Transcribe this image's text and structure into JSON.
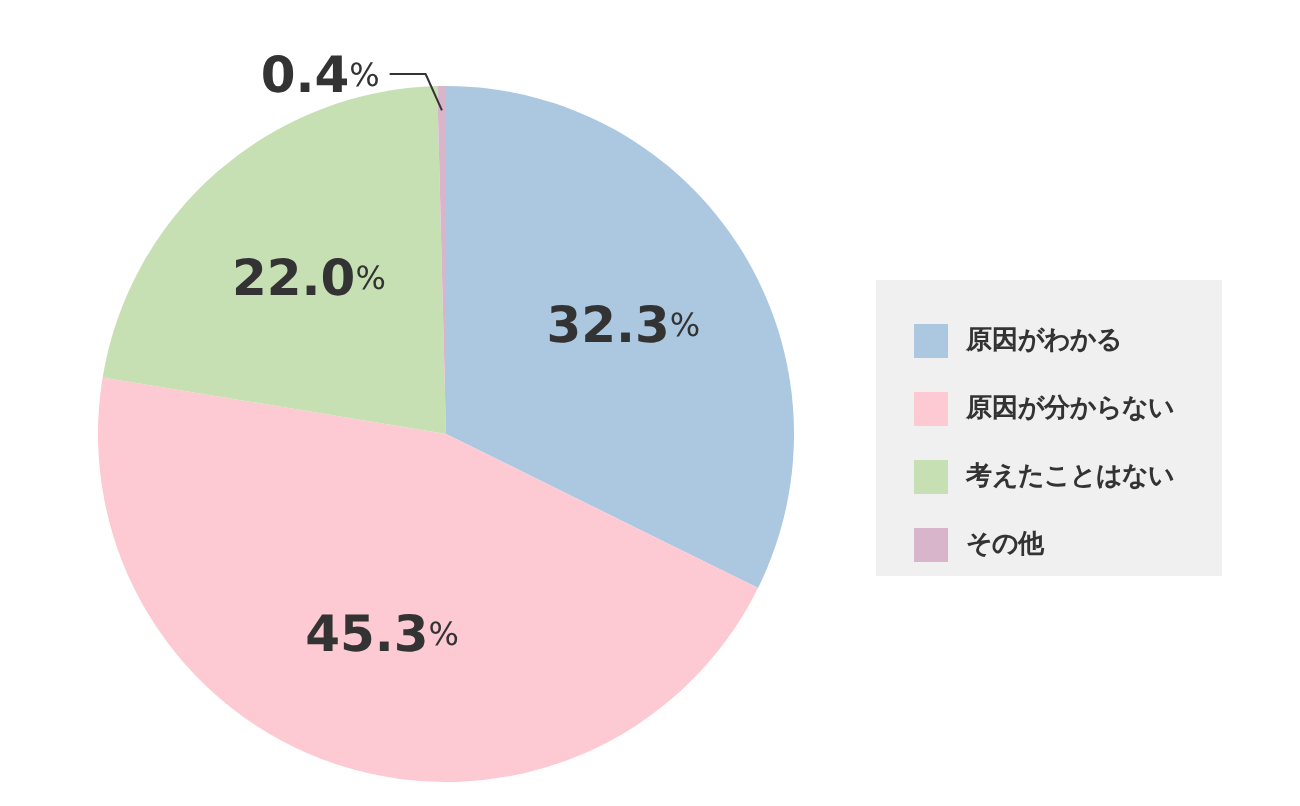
{
  "chart_data": {
    "type": "pie",
    "categories": [
      "原因がわかる",
      "原因が分からない",
      "考えたことはない",
      "その他"
    ],
    "values": [
      32.3,
      45.3,
      22.0,
      0.4
    ],
    "colors": [
      "#abc8e0",
      "#fdc9d3",
      "#c6e0b3",
      "#d9b5cc"
    ],
    "value_labels": [
      "32.3%",
      "45.3%",
      "22.0%",
      "0.4%"
    ],
    "legend": "right"
  }
}
